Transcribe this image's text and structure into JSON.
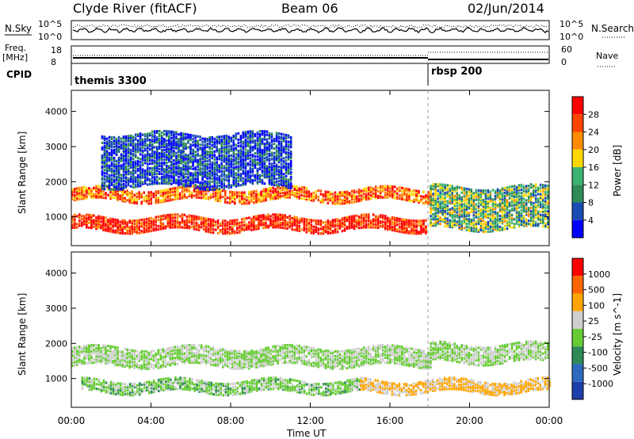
{
  "header": {
    "station": "Clyde River (fitACF)",
    "beam": "Beam 06",
    "date": "02/Jun/2014"
  },
  "top_panels": {
    "nsky_label": "N.Sky",
    "nsearch_label": "N.Search",
    "nsky_ticks": [
      "10^5",
      "10^0"
    ],
    "nsearch_ticks": [
      "10^5",
      "10^0"
    ],
    "freq_label": "Freq.",
    "freq_unit": "[MHz]",
    "freq_ticks": [
      "18",
      "8"
    ],
    "nave_label": "Nave",
    "nave_ticks": [
      "60",
      "0"
    ],
    "cpid_label": "CPID",
    "cpid_segments": [
      {
        "name": "themis 3300",
        "start": "00:00",
        "end": "18:00"
      },
      {
        "name": "rbsp 200",
        "start": "18:00",
        "end": "24:00"
      }
    ]
  },
  "chart_data": [
    {
      "type": "heatmap",
      "name": "power",
      "xlabel": "",
      "ylabel": "Slant Range [km]",
      "xlim": [
        0,
        24
      ],
      "ylim": [
        180,
        4600
      ],
      "yticks": [
        "1000",
        "2000",
        "3000",
        "4000"
      ],
      "colorbar_label": "Power [dB]",
      "colorbar_ticks": [
        "28",
        "24",
        "20",
        "16",
        "12",
        "8",
        "4"
      ],
      "colors": [
        "#0000ff",
        "#1a4bb5",
        "#2e8b57",
        "#3cb371",
        "#ffd700",
        "#ff8c00",
        "#ff4500",
        "#ff0000"
      ],
      "bands": [
        {
          "range_km": [
            1500,
            1850
          ],
          "start_h": 0.0,
          "end_h": 18.0,
          "power_db": 22
        },
        {
          "range_km": [
            650,
            1050
          ],
          "start_h": 0.0,
          "end_h": 17.8,
          "power_db": 26
        },
        {
          "range_km": [
            1900,
            3400
          ],
          "start_h": 1.5,
          "end_h": 11.0,
          "power_db": 8
        },
        {
          "range_km": [
            700,
            1900
          ],
          "start_h": 18.0,
          "end_h": 24.0,
          "power_db": 14
        }
      ]
    },
    {
      "type": "heatmap",
      "name": "velocity",
      "xlabel": "Time UT",
      "ylabel": "Slant Range [km]",
      "xlim": [
        0,
        24
      ],
      "ylim": [
        180,
        4600
      ],
      "xticks": [
        "00:00",
        "04:00",
        "08:00",
        "12:00",
        "16:00",
        "20:00",
        "00:00"
      ],
      "yticks": [
        "1000",
        "2000",
        "3000",
        "4000"
      ],
      "colorbar_label": "Velocity [m s^-1]",
      "colorbar_ticks": [
        "1000",
        "500",
        "100",
        "25",
        "-25",
        "-100",
        "-500",
        "-1000"
      ],
      "colors": [
        "#1e3faa",
        "#2e6bbf",
        "#2e8b57",
        "#66cc33",
        "#cfcfcf",
        "#ffa500",
        "#ff6600",
        "#ff0000"
      ],
      "bands": [
        {
          "range_km": [
            1400,
            1900
          ],
          "start_h": 0.0,
          "end_h": 18.0,
          "velocity_ms": 0
        },
        {
          "range_km": [
            650,
            1000
          ],
          "start_h": 0.5,
          "end_h": 14.5,
          "velocity_ms": -100
        },
        {
          "range_km": [
            650,
            1000
          ],
          "start_h": 14.5,
          "end_h": 24.0,
          "velocity_ms": 300
        },
        {
          "range_km": [
            1500,
            2000
          ],
          "start_h": 18.0,
          "end_h": 24.0,
          "velocity_ms": 0
        }
      ]
    }
  ]
}
